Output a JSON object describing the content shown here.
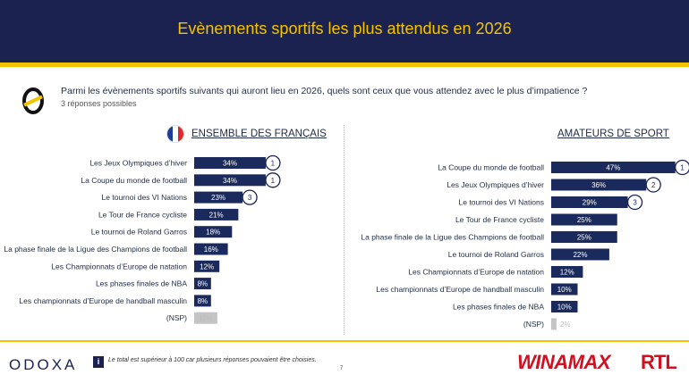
{
  "header": {
    "title": "Evènements sportifs les plus attendus en 2026"
  },
  "question": {
    "text": "Parmi les évènements sportifs suivants qui auront lieu en 2026, quels sont ceux que vous attendez avec le plus d’impatience ?",
    "sub": "3 réponses possibles"
  },
  "colors": {
    "navy": "#1b2250",
    "yellow": "#f5c400",
    "bar": "#1b2a5c",
    "muted_bar": "#c4c4c4",
    "brand_red": "#d01020"
  },
  "chart_data": [
    {
      "type": "bar",
      "orientation": "horizontal",
      "title": "ENSEMBLE DES FRANÇAIS",
      "categories": [
        "Les Jeux Olympiques d’hiver",
        "La Coupe du monde de football",
        "Le tournoi des VI Nations",
        "Le Tour de France cycliste",
        "Le tournoi de Roland Garros",
        "La phase finale de la Ligue des Champions de football",
        "Les Championnats d’Europe de natation",
        "Les phases finales de NBA",
        "Les championnats d’Europe de handball masculin",
        "(NSP)"
      ],
      "values": [
        34,
        34,
        23,
        21,
        18,
        16,
        12,
        8,
        8,
        11
      ],
      "labels": [
        "34%",
        "34%",
        "23%",
        "21%",
        "18%",
        "16%",
        "12%",
        "8%",
        "8%",
        "11%"
      ],
      "ranks": [
        "1",
        "1",
        "3",
        "",
        "",
        "",
        "",
        "",
        "",
        ""
      ],
      "muted": [
        false,
        false,
        false,
        false,
        false,
        false,
        false,
        false,
        false,
        true
      ]
    },
    {
      "type": "bar",
      "orientation": "horizontal",
      "title": "AMATEURS DE SPORT",
      "categories": [
        "La Coupe du monde de football",
        "Les Jeux Olympiques d’hiver",
        "Le tournoi des VI Nations",
        "Le Tour de France cycliste",
        "La phase finale de la Ligue des Champions de football",
        "Le tournoi de Roland Garros",
        "Les Championnats d’Europe de natation",
        "Les championnats d’Europe de handball masculin",
        "Les phases finales de NBA",
        "(NSP)"
      ],
      "values": [
        47,
        36,
        29,
        25,
        25,
        22,
        12,
        10,
        10,
        2
      ],
      "labels": [
        "47%",
        "36%",
        "29%",
        "25%",
        "25%",
        "22%",
        "12%",
        "10%",
        "10%",
        "2%"
      ],
      "ranks": [
        "1",
        "2",
        "3",
        "",
        "",
        "",
        "",
        "",
        "",
        ""
      ],
      "muted": [
        false,
        false,
        false,
        false,
        false,
        false,
        false,
        false,
        false,
        true
      ]
    }
  ],
  "footer": {
    "brand": "ODOXA",
    "info_icon": "i",
    "note": "Le total est supérieur à 100 car plusieurs réponses pouvaient être choisies.",
    "page": "7",
    "sponsor_1": "WINAMAX",
    "sponsor_2": "RTL"
  }
}
